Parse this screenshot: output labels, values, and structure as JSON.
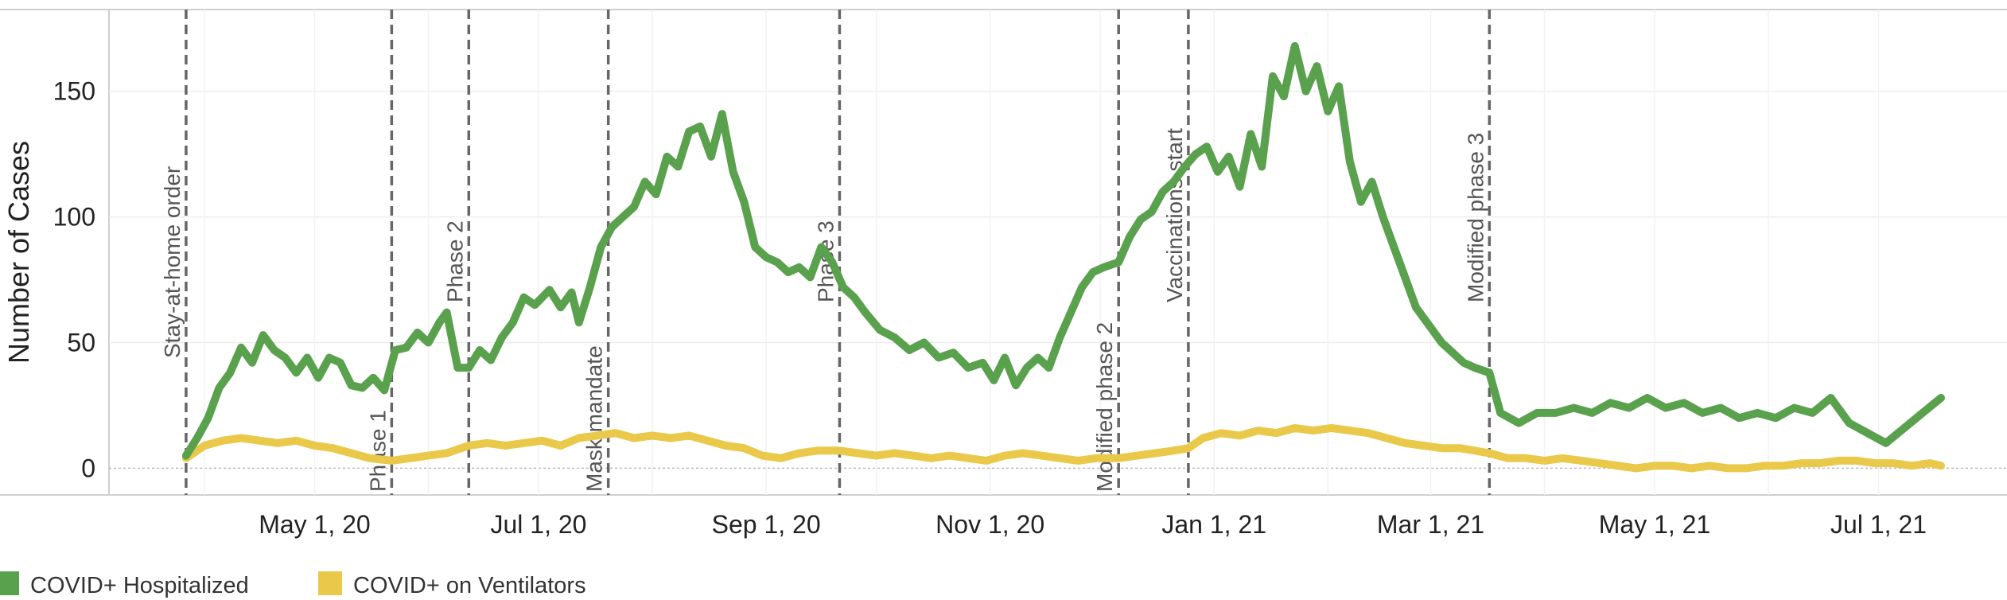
{
  "chart_data": {
    "type": "line",
    "title": "",
    "xlabel": "",
    "ylabel": "Number of Cases",
    "ylim": [
      -10,
      180
    ],
    "yticks": [
      0,
      50,
      100,
      150
    ],
    "xlim": [
      "2020-03-06",
      "2021-07-31"
    ],
    "xticks": [
      {
        "date": "2020-05-01",
        "label": "May 1, 20"
      },
      {
        "date": "2020-07-01",
        "label": "Jul 1, 20"
      },
      {
        "date": "2020-09-01",
        "label": "Sep 1, 20"
      },
      {
        "date": "2020-11-01",
        "label": "Nov 1, 20"
      },
      {
        "date": "2021-01-01",
        "label": "Jan 1, 21"
      },
      {
        "date": "2021-03-01",
        "label": "Mar 1, 21"
      },
      {
        "date": "2021-05-01",
        "label": "May 1, 21"
      },
      {
        "date": "2021-07-01",
        "label": "Jul 1, 21"
      }
    ],
    "events": [
      {
        "date": "2020-03-27",
        "label": "Stay-at-home order",
        "anchor": "high"
      },
      {
        "date": "2020-05-22",
        "label": "Phase 1",
        "anchor": "low"
      },
      {
        "date": "2020-06-12",
        "label": "Phase 2",
        "anchor": "mid"
      },
      {
        "date": "2020-07-20",
        "label": "Mask mandate",
        "anchor": "low"
      },
      {
        "date": "2020-09-21",
        "label": "Phase 3",
        "anchor": "mid"
      },
      {
        "date": "2020-12-06",
        "label": "Modified phase 2",
        "anchor": "low"
      },
      {
        "date": "2020-12-25",
        "label": "Vaccinations start",
        "anchor": "mid"
      },
      {
        "date": "2021-03-17",
        "label": "Modified phase 3",
        "anchor": "mid"
      }
    ],
    "series": [
      {
        "name": "COVID+ Hospitalized",
        "color": "#5aa14e",
        "points": [
          [
            "2020-03-27",
            5
          ],
          [
            "2020-03-30",
            12
          ],
          [
            "2020-04-02",
            20
          ],
          [
            "2020-04-05",
            32
          ],
          [
            "2020-04-08",
            38
          ],
          [
            "2020-04-11",
            48
          ],
          [
            "2020-04-14",
            42
          ],
          [
            "2020-04-17",
            53
          ],
          [
            "2020-04-20",
            47
          ],
          [
            "2020-04-23",
            44
          ],
          [
            "2020-04-26",
            38
          ],
          [
            "2020-04-29",
            44
          ],
          [
            "2020-05-02",
            36
          ],
          [
            "2020-05-05",
            44
          ],
          [
            "2020-05-08",
            42
          ],
          [
            "2020-05-11",
            33
          ],
          [
            "2020-05-14",
            32
          ],
          [
            "2020-05-17",
            36
          ],
          [
            "2020-05-20",
            31
          ],
          [
            "2020-05-23",
            47
          ],
          [
            "2020-05-26",
            48
          ],
          [
            "2020-05-29",
            54
          ],
          [
            "2020-06-01",
            50
          ],
          [
            "2020-06-04",
            58
          ],
          [
            "2020-06-06",
            62
          ],
          [
            "2020-06-09",
            40
          ],
          [
            "2020-06-12",
            40
          ],
          [
            "2020-06-15",
            47
          ],
          [
            "2020-06-18",
            43
          ],
          [
            "2020-06-21",
            52
          ],
          [
            "2020-06-24",
            58
          ],
          [
            "2020-06-27",
            68
          ],
          [
            "2020-06-30",
            65
          ],
          [
            "2020-07-04",
            71
          ],
          [
            "2020-07-07",
            64
          ],
          [
            "2020-07-10",
            70
          ],
          [
            "2020-07-12",
            58
          ],
          [
            "2020-07-15",
            72
          ],
          [
            "2020-07-18",
            88
          ],
          [
            "2020-07-21",
            96
          ],
          [
            "2020-07-24",
            100
          ],
          [
            "2020-07-27",
            104
          ],
          [
            "2020-07-30",
            114
          ],
          [
            "2020-08-02",
            109
          ],
          [
            "2020-08-05",
            124
          ],
          [
            "2020-08-08",
            120
          ],
          [
            "2020-08-11",
            134
          ],
          [
            "2020-08-14",
            136
          ],
          [
            "2020-08-17",
            124
          ],
          [
            "2020-08-20",
            141
          ],
          [
            "2020-08-23",
            118
          ],
          [
            "2020-08-26",
            106
          ],
          [
            "2020-08-29",
            88
          ],
          [
            "2020-09-01",
            84
          ],
          [
            "2020-09-04",
            82
          ],
          [
            "2020-09-07",
            78
          ],
          [
            "2020-09-10",
            80
          ],
          [
            "2020-09-13",
            76
          ],
          [
            "2020-09-16",
            88
          ],
          [
            "2020-09-19",
            82
          ],
          [
            "2020-09-22",
            72
          ],
          [
            "2020-09-25",
            68
          ],
          [
            "2020-09-28",
            62
          ],
          [
            "2020-10-02",
            55
          ],
          [
            "2020-10-06",
            52
          ],
          [
            "2020-10-10",
            47
          ],
          [
            "2020-10-14",
            50
          ],
          [
            "2020-10-18",
            44
          ],
          [
            "2020-10-22",
            46
          ],
          [
            "2020-10-26",
            40
          ],
          [
            "2020-10-30",
            42
          ],
          [
            "2020-11-02",
            35
          ],
          [
            "2020-11-05",
            44
          ],
          [
            "2020-11-08",
            33
          ],
          [
            "2020-11-11",
            40
          ],
          [
            "2020-11-14",
            44
          ],
          [
            "2020-11-17",
            40
          ],
          [
            "2020-11-20",
            52
          ],
          [
            "2020-11-23",
            62
          ],
          [
            "2020-11-26",
            72
          ],
          [
            "2020-11-29",
            78
          ],
          [
            "2020-12-02",
            80
          ],
          [
            "2020-12-06",
            82
          ],
          [
            "2020-12-09",
            92
          ],
          [
            "2020-12-12",
            99
          ],
          [
            "2020-12-15",
            102
          ],
          [
            "2020-12-18",
            110
          ],
          [
            "2020-12-21",
            114
          ],
          [
            "2020-12-24",
            120
          ],
          [
            "2020-12-27",
            125
          ],
          [
            "2020-12-30",
            128
          ],
          [
            "2021-01-02",
            118
          ],
          [
            "2021-01-05",
            124
          ],
          [
            "2021-01-08",
            112
          ],
          [
            "2021-01-11",
            133
          ],
          [
            "2021-01-14",
            120
          ],
          [
            "2021-01-17",
            156
          ],
          [
            "2021-01-20",
            148
          ],
          [
            "2021-01-23",
            168
          ],
          [
            "2021-01-26",
            150
          ],
          [
            "2021-01-29",
            160
          ],
          [
            "2021-02-01",
            142
          ],
          [
            "2021-02-04",
            152
          ],
          [
            "2021-02-07",
            122
          ],
          [
            "2021-02-10",
            106
          ],
          [
            "2021-02-13",
            114
          ],
          [
            "2021-02-16",
            100
          ],
          [
            "2021-02-19",
            88
          ],
          [
            "2021-02-22",
            76
          ],
          [
            "2021-02-25",
            64
          ],
          [
            "2021-03-01",
            56
          ],
          [
            "2021-03-04",
            50
          ],
          [
            "2021-03-07",
            46
          ],
          [
            "2021-03-10",
            42
          ],
          [
            "2021-03-13",
            40
          ],
          [
            "2021-03-17",
            38
          ],
          [
            "2021-03-20",
            22
          ],
          [
            "2021-03-25",
            18
          ],
          [
            "2021-03-30",
            22
          ],
          [
            "2021-04-04",
            22
          ],
          [
            "2021-04-09",
            24
          ],
          [
            "2021-04-14",
            22
          ],
          [
            "2021-04-19",
            26
          ],
          [
            "2021-04-24",
            24
          ],
          [
            "2021-04-29",
            28
          ],
          [
            "2021-05-04",
            24
          ],
          [
            "2021-05-09",
            26
          ],
          [
            "2021-05-14",
            22
          ],
          [
            "2021-05-19",
            24
          ],
          [
            "2021-05-24",
            20
          ],
          [
            "2021-05-29",
            22
          ],
          [
            "2021-06-03",
            20
          ],
          [
            "2021-06-08",
            24
          ],
          [
            "2021-06-13",
            22
          ],
          [
            "2021-06-18",
            28
          ],
          [
            "2021-06-23",
            18
          ],
          [
            "2021-06-28",
            14
          ],
          [
            "2021-07-03",
            10
          ],
          [
            "2021-07-08",
            16
          ],
          [
            "2021-07-13",
            22
          ],
          [
            "2021-07-18",
            28
          ]
        ]
      },
      {
        "name": "COVID+ on Ventilators",
        "color": "#eac94a",
        "points": [
          [
            "2020-03-27",
            4
          ],
          [
            "2020-04-01",
            9
          ],
          [
            "2020-04-06",
            11
          ],
          [
            "2020-04-11",
            12
          ],
          [
            "2020-04-16",
            11
          ],
          [
            "2020-04-21",
            10
          ],
          [
            "2020-04-26",
            11
          ],
          [
            "2020-05-01",
            9
          ],
          [
            "2020-05-06",
            8
          ],
          [
            "2020-05-11",
            6
          ],
          [
            "2020-05-16",
            4
          ],
          [
            "2020-05-22",
            3
          ],
          [
            "2020-05-27",
            4
          ],
          [
            "2020-06-01",
            5
          ],
          [
            "2020-06-06",
            6
          ],
          [
            "2020-06-12",
            9
          ],
          [
            "2020-06-17",
            10
          ],
          [
            "2020-06-22",
            9
          ],
          [
            "2020-06-27",
            10
          ],
          [
            "2020-07-02",
            11
          ],
          [
            "2020-07-07",
            9
          ],
          [
            "2020-07-12",
            12
          ],
          [
            "2020-07-17",
            13
          ],
          [
            "2020-07-22",
            14
          ],
          [
            "2020-07-27",
            12
          ],
          [
            "2020-08-01",
            13
          ],
          [
            "2020-08-06",
            12
          ],
          [
            "2020-08-11",
            13
          ],
          [
            "2020-08-16",
            11
          ],
          [
            "2020-08-21",
            9
          ],
          [
            "2020-08-26",
            8
          ],
          [
            "2020-08-31",
            5
          ],
          [
            "2020-09-05",
            4
          ],
          [
            "2020-09-10",
            6
          ],
          [
            "2020-09-15",
            7
          ],
          [
            "2020-09-21",
            7
          ],
          [
            "2020-09-26",
            6
          ],
          [
            "2020-10-01",
            5
          ],
          [
            "2020-10-06",
            6
          ],
          [
            "2020-10-11",
            5
          ],
          [
            "2020-10-16",
            4
          ],
          [
            "2020-10-21",
            5
          ],
          [
            "2020-10-26",
            4
          ],
          [
            "2020-10-31",
            3
          ],
          [
            "2020-11-05",
            5
          ],
          [
            "2020-11-10",
            6
          ],
          [
            "2020-11-15",
            5
          ],
          [
            "2020-11-20",
            4
          ],
          [
            "2020-11-25",
            3
          ],
          [
            "2020-11-30",
            4
          ],
          [
            "2020-12-06",
            4
          ],
          [
            "2020-12-11",
            5
          ],
          [
            "2020-12-16",
            6
          ],
          [
            "2020-12-21",
            7
          ],
          [
            "2020-12-25",
            8
          ],
          [
            "2020-12-29",
            12
          ],
          [
            "2021-01-03",
            14
          ],
          [
            "2021-01-08",
            13
          ],
          [
            "2021-01-13",
            15
          ],
          [
            "2021-01-18",
            14
          ],
          [
            "2021-01-23",
            16
          ],
          [
            "2021-01-28",
            15
          ],
          [
            "2021-02-02",
            16
          ],
          [
            "2021-02-07",
            15
          ],
          [
            "2021-02-12",
            14
          ],
          [
            "2021-02-17",
            12
          ],
          [
            "2021-02-22",
            10
          ],
          [
            "2021-02-27",
            9
          ],
          [
            "2021-03-04",
            8
          ],
          [
            "2021-03-09",
            8
          ],
          [
            "2021-03-17",
            6
          ],
          [
            "2021-03-22",
            4
          ],
          [
            "2021-03-27",
            4
          ],
          [
            "2021-04-01",
            3
          ],
          [
            "2021-04-06",
            4
          ],
          [
            "2021-04-11",
            3
          ],
          [
            "2021-04-16",
            2
          ],
          [
            "2021-04-21",
            1
          ],
          [
            "2021-04-26",
            0
          ],
          [
            "2021-05-01",
            1
          ],
          [
            "2021-05-06",
            1
          ],
          [
            "2021-05-11",
            0
          ],
          [
            "2021-05-16",
            1
          ],
          [
            "2021-05-21",
            0
          ],
          [
            "2021-05-26",
            0
          ],
          [
            "2021-05-31",
            1
          ],
          [
            "2021-06-05",
            1
          ],
          [
            "2021-06-10",
            2
          ],
          [
            "2021-06-15",
            2
          ],
          [
            "2021-06-20",
            3
          ],
          [
            "2021-06-25",
            3
          ],
          [
            "2021-06-30",
            2
          ],
          [
            "2021-07-05",
            2
          ],
          [
            "2021-07-10",
            1
          ],
          [
            "2021-07-15",
            2
          ],
          [
            "2021-07-18",
            1
          ]
        ]
      }
    ],
    "legend": {
      "position": "bottom-left"
    }
  }
}
